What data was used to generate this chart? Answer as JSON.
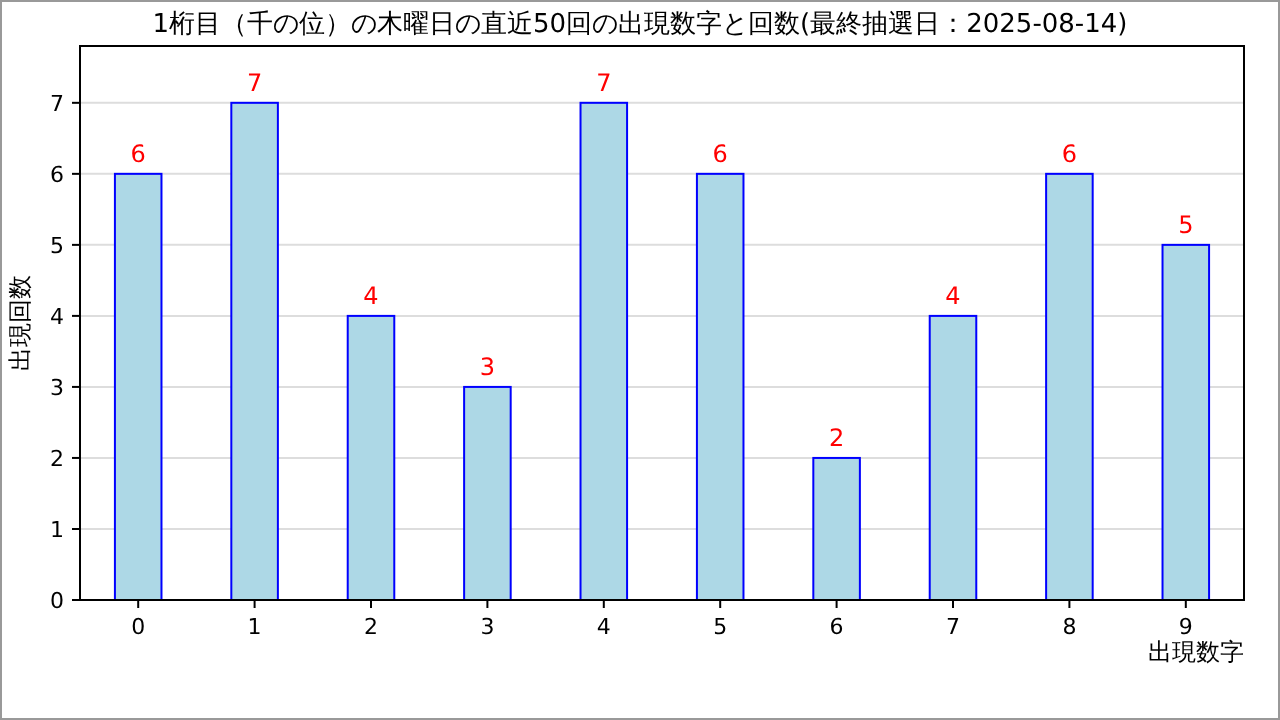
{
  "chart_data": {
    "type": "bar",
    "title": "1桁目（千の位）の木曜日の直近50回の出現数字と回数(最終抽選日：2025-08-14)",
    "xlabel": "出現数字",
    "ylabel": "出現回数",
    "categories": [
      "0",
      "1",
      "2",
      "3",
      "4",
      "5",
      "6",
      "7",
      "8",
      "9"
    ],
    "values": [
      6,
      7,
      4,
      3,
      7,
      6,
      2,
      4,
      6,
      5
    ],
    "color": "#add8e6",
    "data_labels": true,
    "grid": "y",
    "ylim": [
      0,
      7.8
    ],
    "yticks": [
      0,
      1,
      2,
      3,
      4,
      5,
      6,
      7
    ]
  }
}
